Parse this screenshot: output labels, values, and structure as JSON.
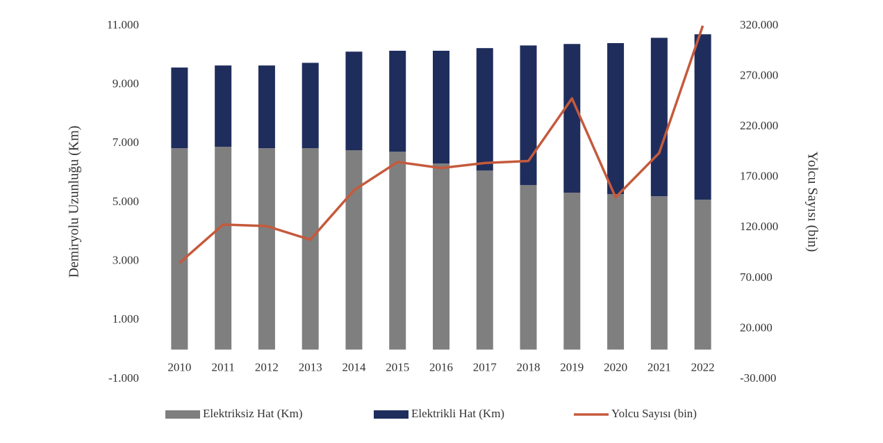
{
  "chart_data": {
    "type": "bar",
    "stacked": true,
    "y_label": "Demiryolu Uzunluğu (Km)",
    "y2_label": "Yolcu Sayısı (bin)",
    "categories": [
      "2010",
      "2011",
      "2012",
      "2013",
      "2014",
      "2015",
      "2016",
      "2017",
      "2018",
      "2019",
      "2020",
      "2021",
      "2022"
    ],
    "series": [
      {
        "name": "Elektriksiz Hat (Km)",
        "color": "#7f7f7f",
        "type": "bar",
        "values": [
          6840,
          6890,
          6840,
          6840,
          6770,
          6720,
          6320,
          6080,
          5590,
          5330,
          5280,
          5210,
          5090
        ]
      },
      {
        "name": "Elektrikli Hat (Km)",
        "color": "#1f2d5c",
        "type": "bar",
        "values": [
          2740,
          2760,
          2810,
          2900,
          3350,
          3430,
          3830,
          4160,
          4740,
          5050,
          5130,
          5380,
          5620
        ]
      },
      {
        "name": "Yolcu Sayısı (bin)",
        "color": "#c55a3c",
        "type": "line",
        "axis": "y2",
        "values": [
          85000,
          123000,
          121500,
          108000,
          157000,
          185000,
          179000,
          184000,
          186000,
          248000,
          150000,
          194000,
          320000
        ]
      }
    ],
    "ylim": [
      -1000,
      11000
    ],
    "yticks": [
      {
        "value": -1000,
        "label": "-1.000"
      },
      {
        "value": 1000,
        "label": "1.000"
      },
      {
        "value": 3000,
        "label": "3.000"
      },
      {
        "value": 5000,
        "label": "5.000"
      },
      {
        "value": 7000,
        "label": "7.000"
      },
      {
        "value": 9000,
        "label": "9.000"
      },
      {
        "value": 11000,
        "label": "11.000"
      }
    ],
    "y2lim": [
      -30000,
      320000
    ],
    "y2ticks": [
      {
        "value": -30000,
        "label": "-30.000"
      },
      {
        "value": 20000,
        "label": "20.000"
      },
      {
        "value": 70000,
        "label": "70.000"
      },
      {
        "value": 120000,
        "label": "120.000"
      },
      {
        "value": 170000,
        "label": "170.000"
      },
      {
        "value": 220000,
        "label": "220.000"
      },
      {
        "value": 270000,
        "label": "270.000"
      },
      {
        "value": 320000,
        "label": "320.000"
      }
    ],
    "legend": "bottom"
  }
}
